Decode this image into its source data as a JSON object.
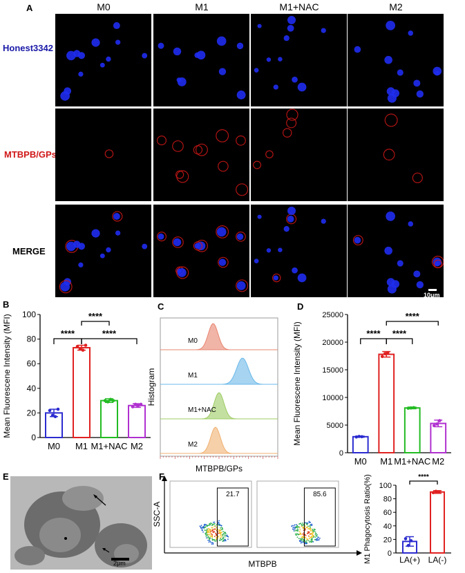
{
  "panels": {
    "A": {
      "label": "A",
      "columns": [
        "M0",
        "M1",
        "M1+NAC",
        "M2"
      ],
      "rows": [
        {
          "label": "Honest3342",
          "color": "#1a1aa8"
        },
        {
          "label": "MTBPB/GPs",
          "color": "#d01818"
        },
        {
          "label": "MERGE",
          "color": "#000000"
        }
      ],
      "scale_bar": "10μm"
    },
    "E": {
      "label": "E",
      "scale_bar": "2μm"
    },
    "F_label": "F"
  },
  "chart_data": [
    {
      "id": "B",
      "label": "B",
      "type": "bar",
      "categories": [
        "M0",
        "M1",
        "M1+NAC",
        "M2"
      ],
      "values": [
        20,
        73,
        30,
        26
      ],
      "errors": [
        3,
        2,
        1.5,
        1.5
      ],
      "points": [
        [
          22,
          18,
          17,
          23
        ],
        [
          74,
          72,
          71,
          75
        ],
        [
          30,
          29,
          31,
          30
        ],
        [
          25,
          27,
          26,
          27
        ]
      ],
      "colors": [
        "#2b2bd0",
        "#e02020",
        "#22bb22",
        "#b030d0"
      ],
      "ylabel": "Mean Fluorescene Intensity (MFI)",
      "ylim": [
        0,
        100
      ],
      "yticks": [
        "0",
        "20",
        "40",
        "60",
        "80",
        "100"
      ],
      "significance": [
        "****",
        "****",
        "****"
      ]
    },
    {
      "id": "C",
      "label": "C",
      "type": "area",
      "ylabel": "Histogram",
      "xlabel": "MTBPB/GPs",
      "series": [
        {
          "name": "M0",
          "color": "#e8846e",
          "peak": 0.45
        },
        {
          "name": "M1",
          "color": "#6ab8e8",
          "peak": 0.7
        },
        {
          "name": "M1+NAC",
          "color": "#9ccc62",
          "peak": 0.5
        },
        {
          "name": "M2",
          "color": "#f0b070",
          "peak": 0.47
        }
      ]
    },
    {
      "id": "D",
      "label": "D",
      "type": "bar",
      "categories": [
        "M0",
        "M1",
        "M1+NAC",
        "M2"
      ],
      "values": [
        2900,
        17800,
        8100,
        5300
      ],
      "errors": [
        100,
        500,
        150,
        600
      ],
      "points": [
        [
          2850,
          2950,
          2900
        ],
        [
          17400,
          17900,
          18100
        ],
        [
          8050,
          8100,
          8150
        ],
        [
          4900,
          5200,
          5800
        ]
      ],
      "colors": [
        "#2b2bd0",
        "#e02020",
        "#22bb22",
        "#b030d0"
      ],
      "ylabel": "Mean Fluorescene Intensity (MFI)",
      "ylim": [
        0,
        25000
      ],
      "yticks": [
        "0",
        "5000",
        "10000",
        "15000",
        "20000",
        "25000"
      ],
      "significance": [
        "****",
        "****",
        "****"
      ]
    },
    {
      "id": "F-flow",
      "type": "scatter",
      "xlabel": "MTBPB",
      "ylabel": "SSC-A",
      "gates": [
        "21.7",
        "85.6"
      ]
    },
    {
      "id": "F-bar",
      "type": "bar",
      "categories": [
        "LA(+)",
        "LA(-)"
      ],
      "values": [
        17,
        90
      ],
      "errors": [
        7,
        2
      ],
      "points": [
        [
          21,
          11,
          18
        ],
        [
          89,
          91,
          90
        ]
      ],
      "colors": [
        "#2b2bd0",
        "#e02020"
      ],
      "ylabel": "M1 Phagocytosis Ratio(%)",
      "ylim": [
        0,
        100
      ],
      "yticks": [
        "0",
        "20",
        "40",
        "60",
        "80",
        "100"
      ],
      "significance": [
        "****"
      ]
    }
  ]
}
